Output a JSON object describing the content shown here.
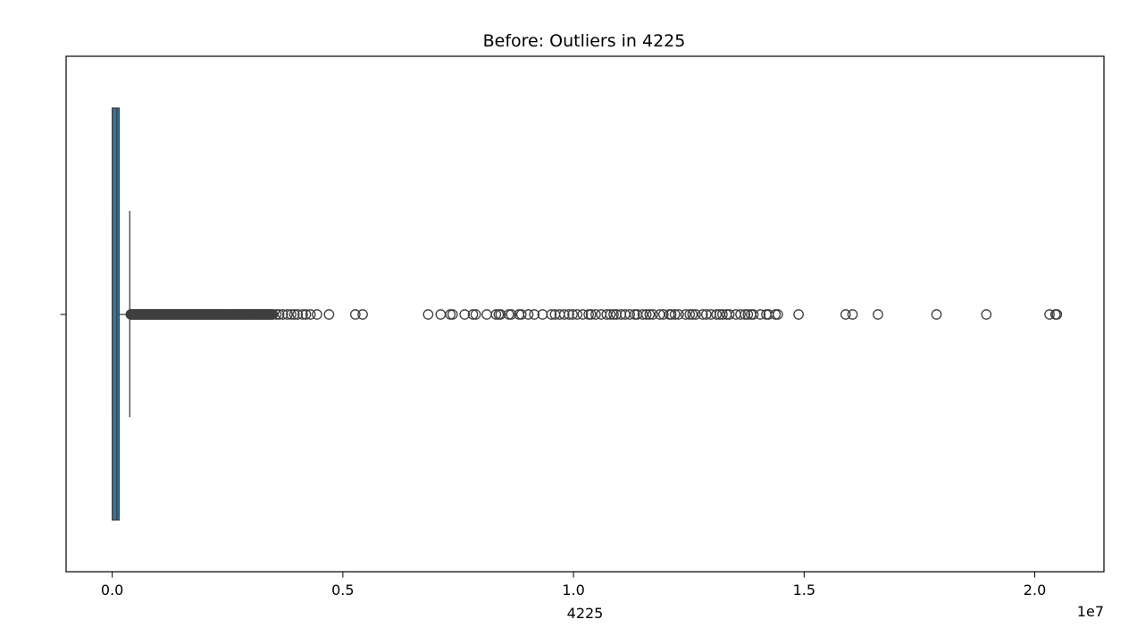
{
  "chart_data": {
    "type": "box",
    "title": "Before: Outliers in 4225",
    "xlabel": "4225",
    "ylabel": "",
    "axis_offset_text": "1e7",
    "xlim": [
      -1000000,
      21500000
    ],
    "x_ticks": [
      {
        "value": 0,
        "label": "0.0"
      },
      {
        "value": 5000000,
        "label": "0.5"
      },
      {
        "value": 10000000,
        "label": "1.0"
      },
      {
        "value": 15000000,
        "label": "1.5"
      },
      {
        "value": 20000000,
        "label": "2.0"
      }
    ],
    "orientation": "horizontal",
    "grid": false,
    "box": {
      "min": 0,
      "q1": 0,
      "median": 100000,
      "q3": 150000,
      "max": 380000
    },
    "dense_outlier_range": [
      380000,
      3500000
    ],
    "outliers": [
      3560000,
      3620000,
      3700000,
      3800000,
      3880000,
      3950000,
      4020000,
      4130000,
      4200000,
      4300000,
      4440000,
      4700000,
      5270000,
      5430000,
      6850000,
      7120000,
      7330000,
      7380000,
      7640000,
      7820000,
      7880000,
      8120000,
      8320000,
      8380000,
      8420000,
      8600000,
      8650000,
      8820000,
      8870000,
      9020000,
      9150000,
      9330000,
      9520000,
      9600000,
      9700000,
      9800000,
      9900000,
      9980000,
      10080000,
      10200000,
      10330000,
      10380000,
      10480000,
      10600000,
      10720000,
      10800000,
      10870000,
      10930000,
      11030000,
      11120000,
      11220000,
      11330000,
      11380000,
      11500000,
      11580000,
      11650000,
      11720000,
      11870000,
      11950000,
      12080000,
      12120000,
      12200000,
      12280000,
      12430000,
      12520000,
      12580000,
      12650000,
      12800000,
      12880000,
      12980000,
      13100000,
      13170000,
      13230000,
      13320000,
      13380000,
      13520000,
      13620000,
      13720000,
      13780000,
      13850000,
      13900000,
      14050000,
      14180000,
      14230000,
      14380000,
      14430000,
      14880000,
      15900000,
      16050000,
      16600000,
      17870000,
      18950000,
      20320000,
      20450000,
      20480000
    ],
    "colors": {
      "box_fill": "#3274a1",
      "line": "#3f3f3f",
      "axes": "#000000"
    }
  }
}
